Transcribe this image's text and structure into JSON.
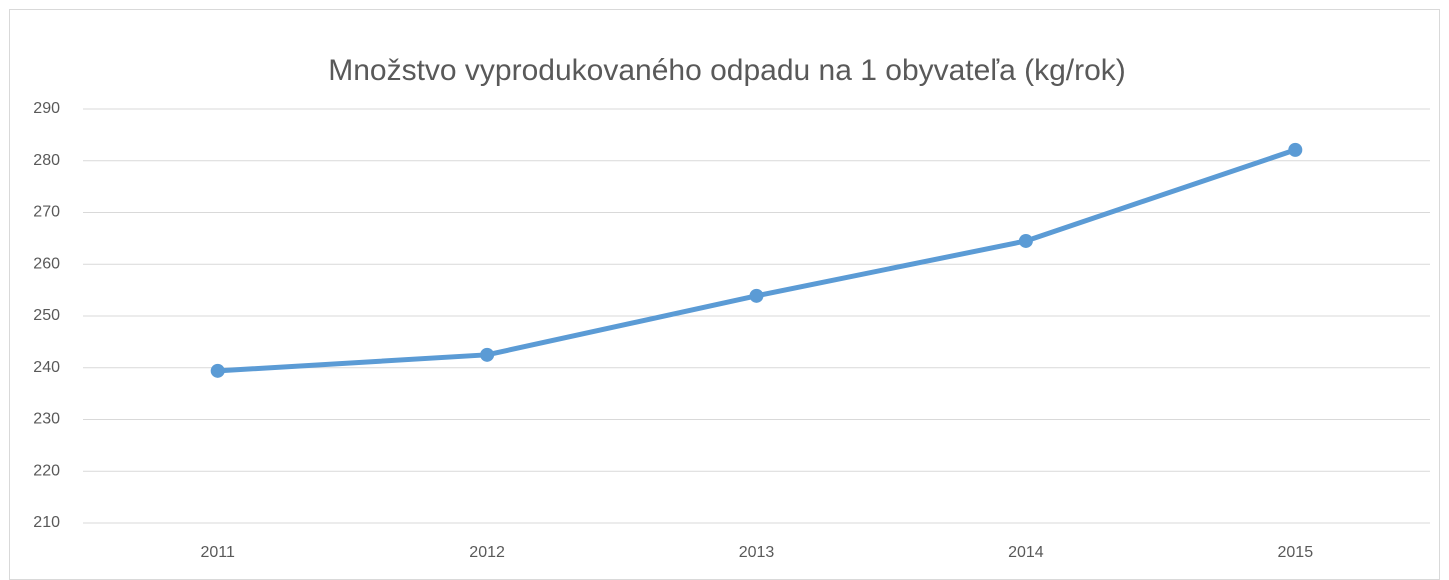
{
  "chart_data": {
    "type": "line",
    "title": "Množstvo vyprodukovaného odpadu na 1 obyvateľa (kg/rok)",
    "categories": [
      "2011",
      "2012",
      "2013",
      "2014",
      "2015"
    ],
    "values": [
      239.4,
      242.5,
      253.9,
      264.5,
      282.1
    ],
    "color": "#5b9bd5",
    "ylim": [
      210,
      290
    ],
    "yticks": [
      210,
      220,
      230,
      240,
      250,
      260,
      270,
      280,
      290
    ],
    "grid": true
  }
}
